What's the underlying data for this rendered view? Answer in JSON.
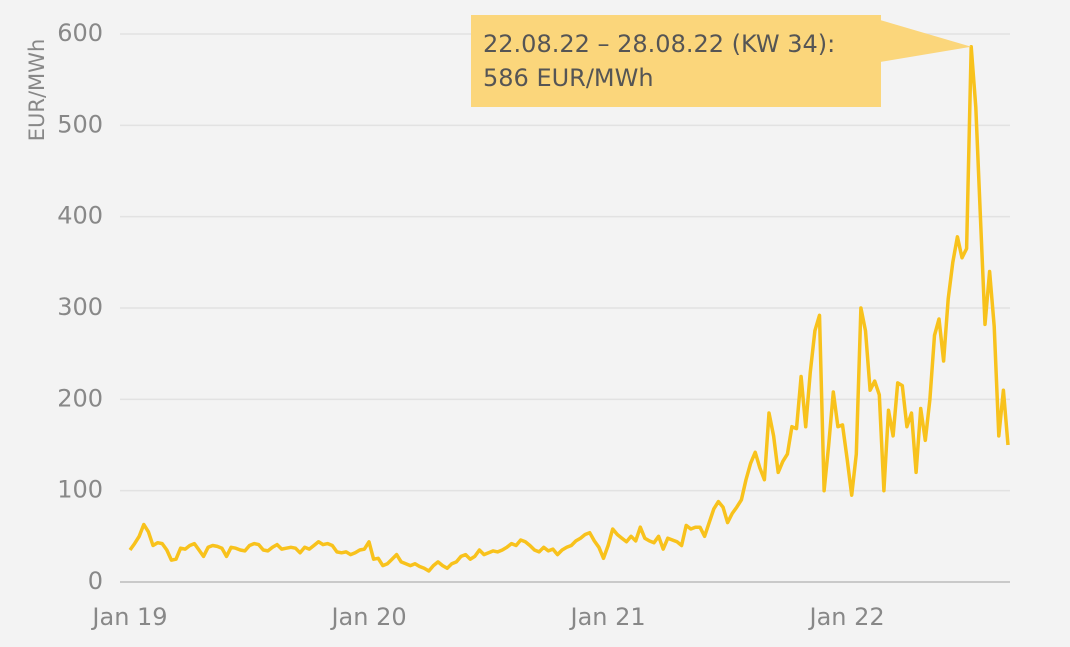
{
  "chart_data": {
    "type": "line",
    "y_label": "EUR/MWh",
    "categories": [
      "Jan 19",
      null,
      null,
      null,
      null,
      null,
      null,
      null,
      null,
      null,
      null,
      null,
      null,
      null,
      null,
      null,
      null,
      null,
      null,
      null,
      null,
      null,
      null,
      null,
      null,
      null,
      null,
      null,
      null,
      null,
      null,
      null,
      null,
      null,
      null,
      null,
      null,
      null,
      null,
      null,
      null,
      null,
      null,
      null,
      null,
      null,
      null,
      null,
      null,
      null,
      null,
      null,
      "Jan 20",
      null,
      null,
      null,
      null,
      null,
      null,
      null,
      null,
      null,
      null,
      null,
      null,
      null,
      null,
      null,
      null,
      null,
      null,
      null,
      null,
      null,
      null,
      null,
      null,
      null,
      null,
      null,
      null,
      null,
      null,
      null,
      null,
      null,
      null,
      null,
      null,
      null,
      null,
      null,
      null,
      null,
      null,
      null,
      null,
      null,
      null,
      null,
      null,
      null,
      null,
      null,
      "Jan 21",
      null,
      null,
      null,
      null,
      null,
      null,
      null,
      null,
      null,
      null,
      null,
      null,
      null,
      null,
      null,
      null,
      null,
      null,
      null,
      null,
      null,
      null,
      null,
      null,
      null,
      null,
      null,
      null,
      null,
      null,
      null,
      null,
      null,
      null,
      null,
      null,
      null,
      null,
      null,
      null,
      null,
      null,
      null,
      null,
      null,
      null,
      null,
      null,
      null,
      null,
      null,
      "Jan 22",
      null,
      null,
      null,
      null,
      null,
      null,
      null,
      null,
      null,
      null,
      null,
      null,
      null,
      null,
      null,
      null,
      null,
      null,
      null,
      null,
      null,
      null,
      null,
      null,
      null,
      null,
      null,
      null,
      null,
      null,
      null,
      null,
      null,
      null,
      null
    ],
    "values": [
      35,
      42,
      50,
      63,
      55,
      40,
      43,
      42,
      35,
      24,
      25,
      37,
      36,
      40,
      42,
      35,
      28,
      38,
      40,
      39,
      37,
      28,
      38,
      37,
      35,
      34,
      40,
      42,
      41,
      35,
      34,
      38,
      41,
      36,
      37,
      38,
      37,
      32,
      38,
      36,
      40,
      44,
      41,
      42,
      40,
      33,
      32,
      33,
      30,
      32,
      35,
      36,
      44,
      25,
      26,
      18,
      20,
      25,
      30,
      22,
      20,
      18,
      20,
      17,
      15,
      12,
      18,
      22,
      18,
      15,
      20,
      22,
      28,
      30,
      25,
      28,
      35,
      30,
      32,
      34,
      33,
      35,
      38,
      42,
      40,
      46,
      44,
      40,
      35,
      33,
      38,
      34,
      36,
      30,
      35,
      38,
      40,
      45,
      48,
      52,
      54,
      45,
      38,
      26,
      40,
      58,
      52,
      48,
      44,
      50,
      45,
      60,
      48,
      45,
      43,
      50,
      36,
      48,
      46,
      44,
      40,
      62,
      58,
      60,
      60,
      50,
      65,
      80,
      88,
      82,
      65,
      75,
      82,
      90,
      112,
      130,
      142,
      125,
      112,
      185,
      160,
      120,
      132,
      140,
      170,
      168,
      225,
      170,
      230,
      275,
      292,
      100,
      150,
      208,
      170,
      172,
      135,
      95,
      140,
      300,
      275,
      210,
      220,
      205,
      100,
      188,
      160,
      218,
      215,
      170,
      185,
      120,
      190,
      155,
      200,
      270,
      288,
      242,
      310,
      350,
      378,
      355,
      365,
      586,
      520,
      400,
      282,
      340,
      280,
      160,
      210,
      150
    ],
    "color": "#f8c21c",
    "ylim": [
      0,
      600
    ],
    "yticks": [
      0,
      100,
      200,
      300,
      400,
      500,
      600
    ],
    "grid": true,
    "annotation": {
      "index": 219,
      "lines": [
        "22.08.22 – 28.08.22 (KW 34):",
        "586 EUR/MWh"
      ]
    }
  }
}
